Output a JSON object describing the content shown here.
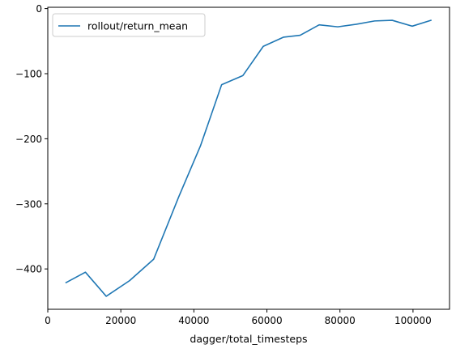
{
  "chart_data": {
    "type": "line",
    "title": "",
    "xlabel": "dagger/total_timesteps",
    "ylabel": "",
    "xlim": [
      0,
      110000
    ],
    "ylim": [
      -462,
      2
    ],
    "x_ticks": [
      0,
      20000,
      40000,
      60000,
      80000,
      100000
    ],
    "x_tick_labels": [
      "0",
      "20000",
      "40000",
      "60000",
      "80000",
      "100000"
    ],
    "y_ticks": [
      0,
      -100,
      -200,
      -300,
      -400
    ],
    "y_tick_labels": [
      "0",
      "−100",
      "−200",
      "−300",
      "−400"
    ],
    "grid": false,
    "legend_position": "upper-left",
    "series": [
      {
        "name": "rollout/return_mean",
        "color": "#1f77b4",
        "x": [
          5000,
          10300,
          16000,
          22400,
          29000,
          35800,
          41800,
          47600,
          53400,
          59000,
          64500,
          69100,
          74300,
          79400,
          84500,
          89500,
          94300,
          99800,
          104900
        ],
        "y": [
          -421,
          -405,
          -442,
          -418,
          -385,
          -290,
          -211,
          -117,
          -103,
          -58,
          -44,
          -41,
          -25,
          -28,
          -24,
          -19,
          -18,
          -27,
          -18
        ]
      }
    ]
  }
}
